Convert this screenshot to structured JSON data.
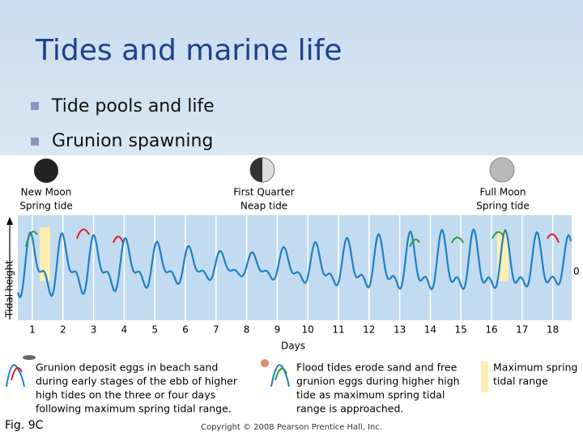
{
  "slide": {
    "title": "Tides and marine life",
    "bullets": [
      "Tide pools and life",
      "Grunion spawning"
    ],
    "figure": {
      "phases": [
        {
          "name": "New Moon",
          "tide": "Spring tide"
        },
        {
          "name": "First Quarter",
          "tide": "Neap tide"
        },
        {
          "name": "Full Moon",
          "tide": "Spring tide"
        }
      ],
      "y_label": "Tidal height",
      "zero_label": "0",
      "x_label": "Days",
      "days": [
        "1",
        "2",
        "3",
        "4",
        "5",
        "6",
        "7",
        "8",
        "9",
        "10",
        "11",
        "12",
        "13",
        "14",
        "15",
        "16",
        "17",
        "18"
      ],
      "legend": [
        [
          "Grunion deposit eggs in beach sand",
          "during early stages of the ebb of higher",
          "high tides on the three or four days",
          "following maximum spring tidal range."
        ],
        [
          "Flood tides erode sand and free",
          "grunion eggs during higher high",
          "tide as maximum spring tidal",
          "range is approached."
        ],
        [
          "Maximum spring",
          "tidal range"
        ]
      ]
    },
    "caption": "Fig. 9C",
    "copyright": "Copyright © 2008 Pearson Prentice Hall, Inc."
  }
}
